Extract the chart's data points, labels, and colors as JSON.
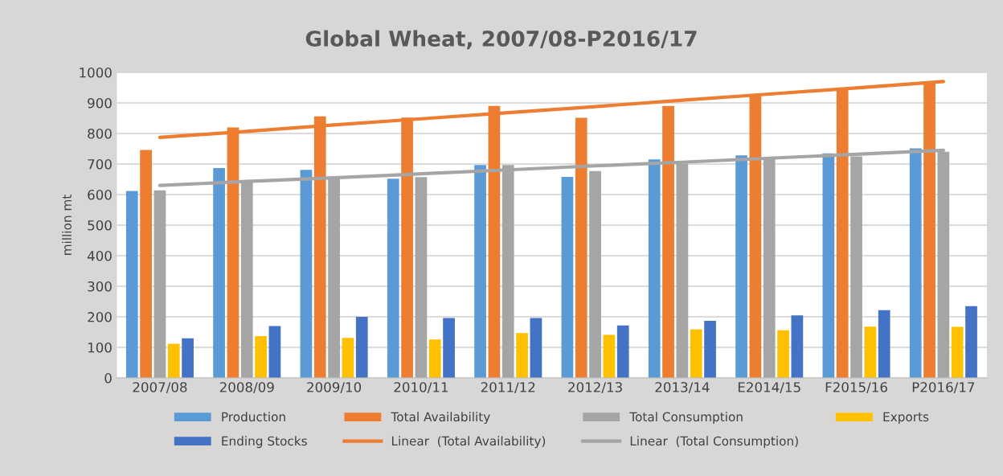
{
  "chart_data": {
    "type": "bar",
    "title": "Global Wheat, 2007/08-P2016/17",
    "ylabel": "million mt",
    "categories": [
      "2007/08",
      "2008/09",
      "2009/10",
      "2010/11",
      "2011/12",
      "2012/13",
      "2013/14",
      "E2014/15",
      "F2015/16",
      "P2016/17"
    ],
    "series": [
      {
        "name": "Production",
        "color": "#5b9bd5",
        "values": [
          612,
          687,
          681,
          652,
          697,
          658,
          715,
          728,
          735,
          751
        ]
      },
      {
        "name": "Total Availability",
        "color": "#ed7d31",
        "values": [
          746,
          820,
          856,
          852,
          890,
          851,
          890,
          924,
          945,
          970
        ]
      },
      {
        "name": "Total Consumption",
        "color": "#a5a5a5",
        "values": [
          614,
          645,
          654,
          657,
          697,
          677,
          701,
          717,
          725,
          740
        ]
      },
      {
        "name": "Exports",
        "color": "#ffc000",
        "values": [
          112,
          137,
          131,
          126,
          147,
          141,
          159,
          156,
          168,
          167
        ]
      },
      {
        "name": "Ending Stocks",
        "color": "#4472c4",
        "values": [
          130,
          170,
          200,
          196,
          196,
          172,
          187,
          205,
          222,
          235
        ]
      },
      {
        "name": "Linear  (Total Availability)",
        "type": "line",
        "color": "#ed7d31",
        "values": [
          787,
          807,
          828,
          848,
          868,
          888,
          909,
          929,
          949,
          970
        ]
      },
      {
        "name": "Linear  (Total Consumption)",
        "type": "line",
        "color": "#a5a5a5",
        "values": [
          630,
          643,
          655,
          668,
          681,
          694,
          706,
          719,
          732,
          745
        ]
      }
    ],
    "ylim": [
      0,
      1000
    ],
    "yticks": [
      0,
      100,
      200,
      300,
      400,
      500,
      600,
      700,
      800,
      900,
      1000
    ],
    "grid": "y",
    "legend": "bottom"
  }
}
